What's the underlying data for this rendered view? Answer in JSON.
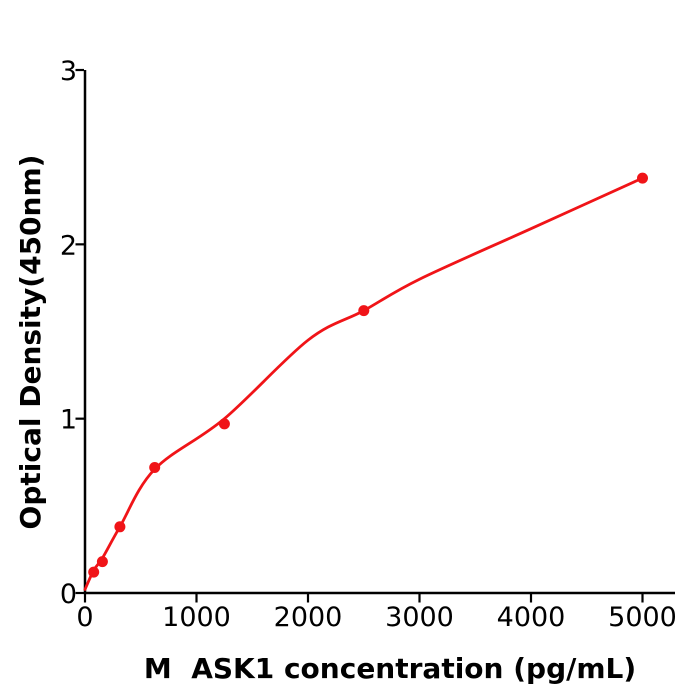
{
  "figure": {
    "background": "#ffffff",
    "axis_color": "#000000",
    "accent_red": "#f01418"
  },
  "chart_data": {
    "type": "scatter",
    "title": "",
    "xlabel": "M  ASK1 concentration (pg/mL)",
    "ylabel": "Optical Density(450nm)",
    "xlim": [
      0,
      5500
    ],
    "ylim": [
      0,
      3
    ],
    "x_ticks": [
      0,
      1000,
      2000,
      3000,
      4000,
      5000
    ],
    "y_ticks": [
      0,
      1,
      2,
      3
    ],
    "grid": false,
    "legend_position": "none",
    "series": [
      {
        "name": "standard-points",
        "type": "scatter",
        "color": "#f01418",
        "marker": "circle",
        "points": [
          [
            78,
            0.12
          ],
          [
            156,
            0.18
          ],
          [
            313,
            0.38
          ],
          [
            625,
            0.72
          ],
          [
            1250,
            0.97
          ],
          [
            2500,
            1.62
          ],
          [
            5000,
            2.38
          ]
        ]
      },
      {
        "name": "fit-curve",
        "type": "line",
        "color": "#f01418",
        "points": [
          [
            0,
            0.02
          ],
          [
            78,
            0.13
          ],
          [
            156,
            0.2
          ],
          [
            313,
            0.38
          ],
          [
            625,
            0.71
          ],
          [
            1250,
            1.0
          ],
          [
            2000,
            1.45
          ],
          [
            2500,
            1.62
          ],
          [
            3000,
            1.8
          ],
          [
            4000,
            2.09
          ],
          [
            5000,
            2.38
          ]
        ]
      }
    ]
  }
}
